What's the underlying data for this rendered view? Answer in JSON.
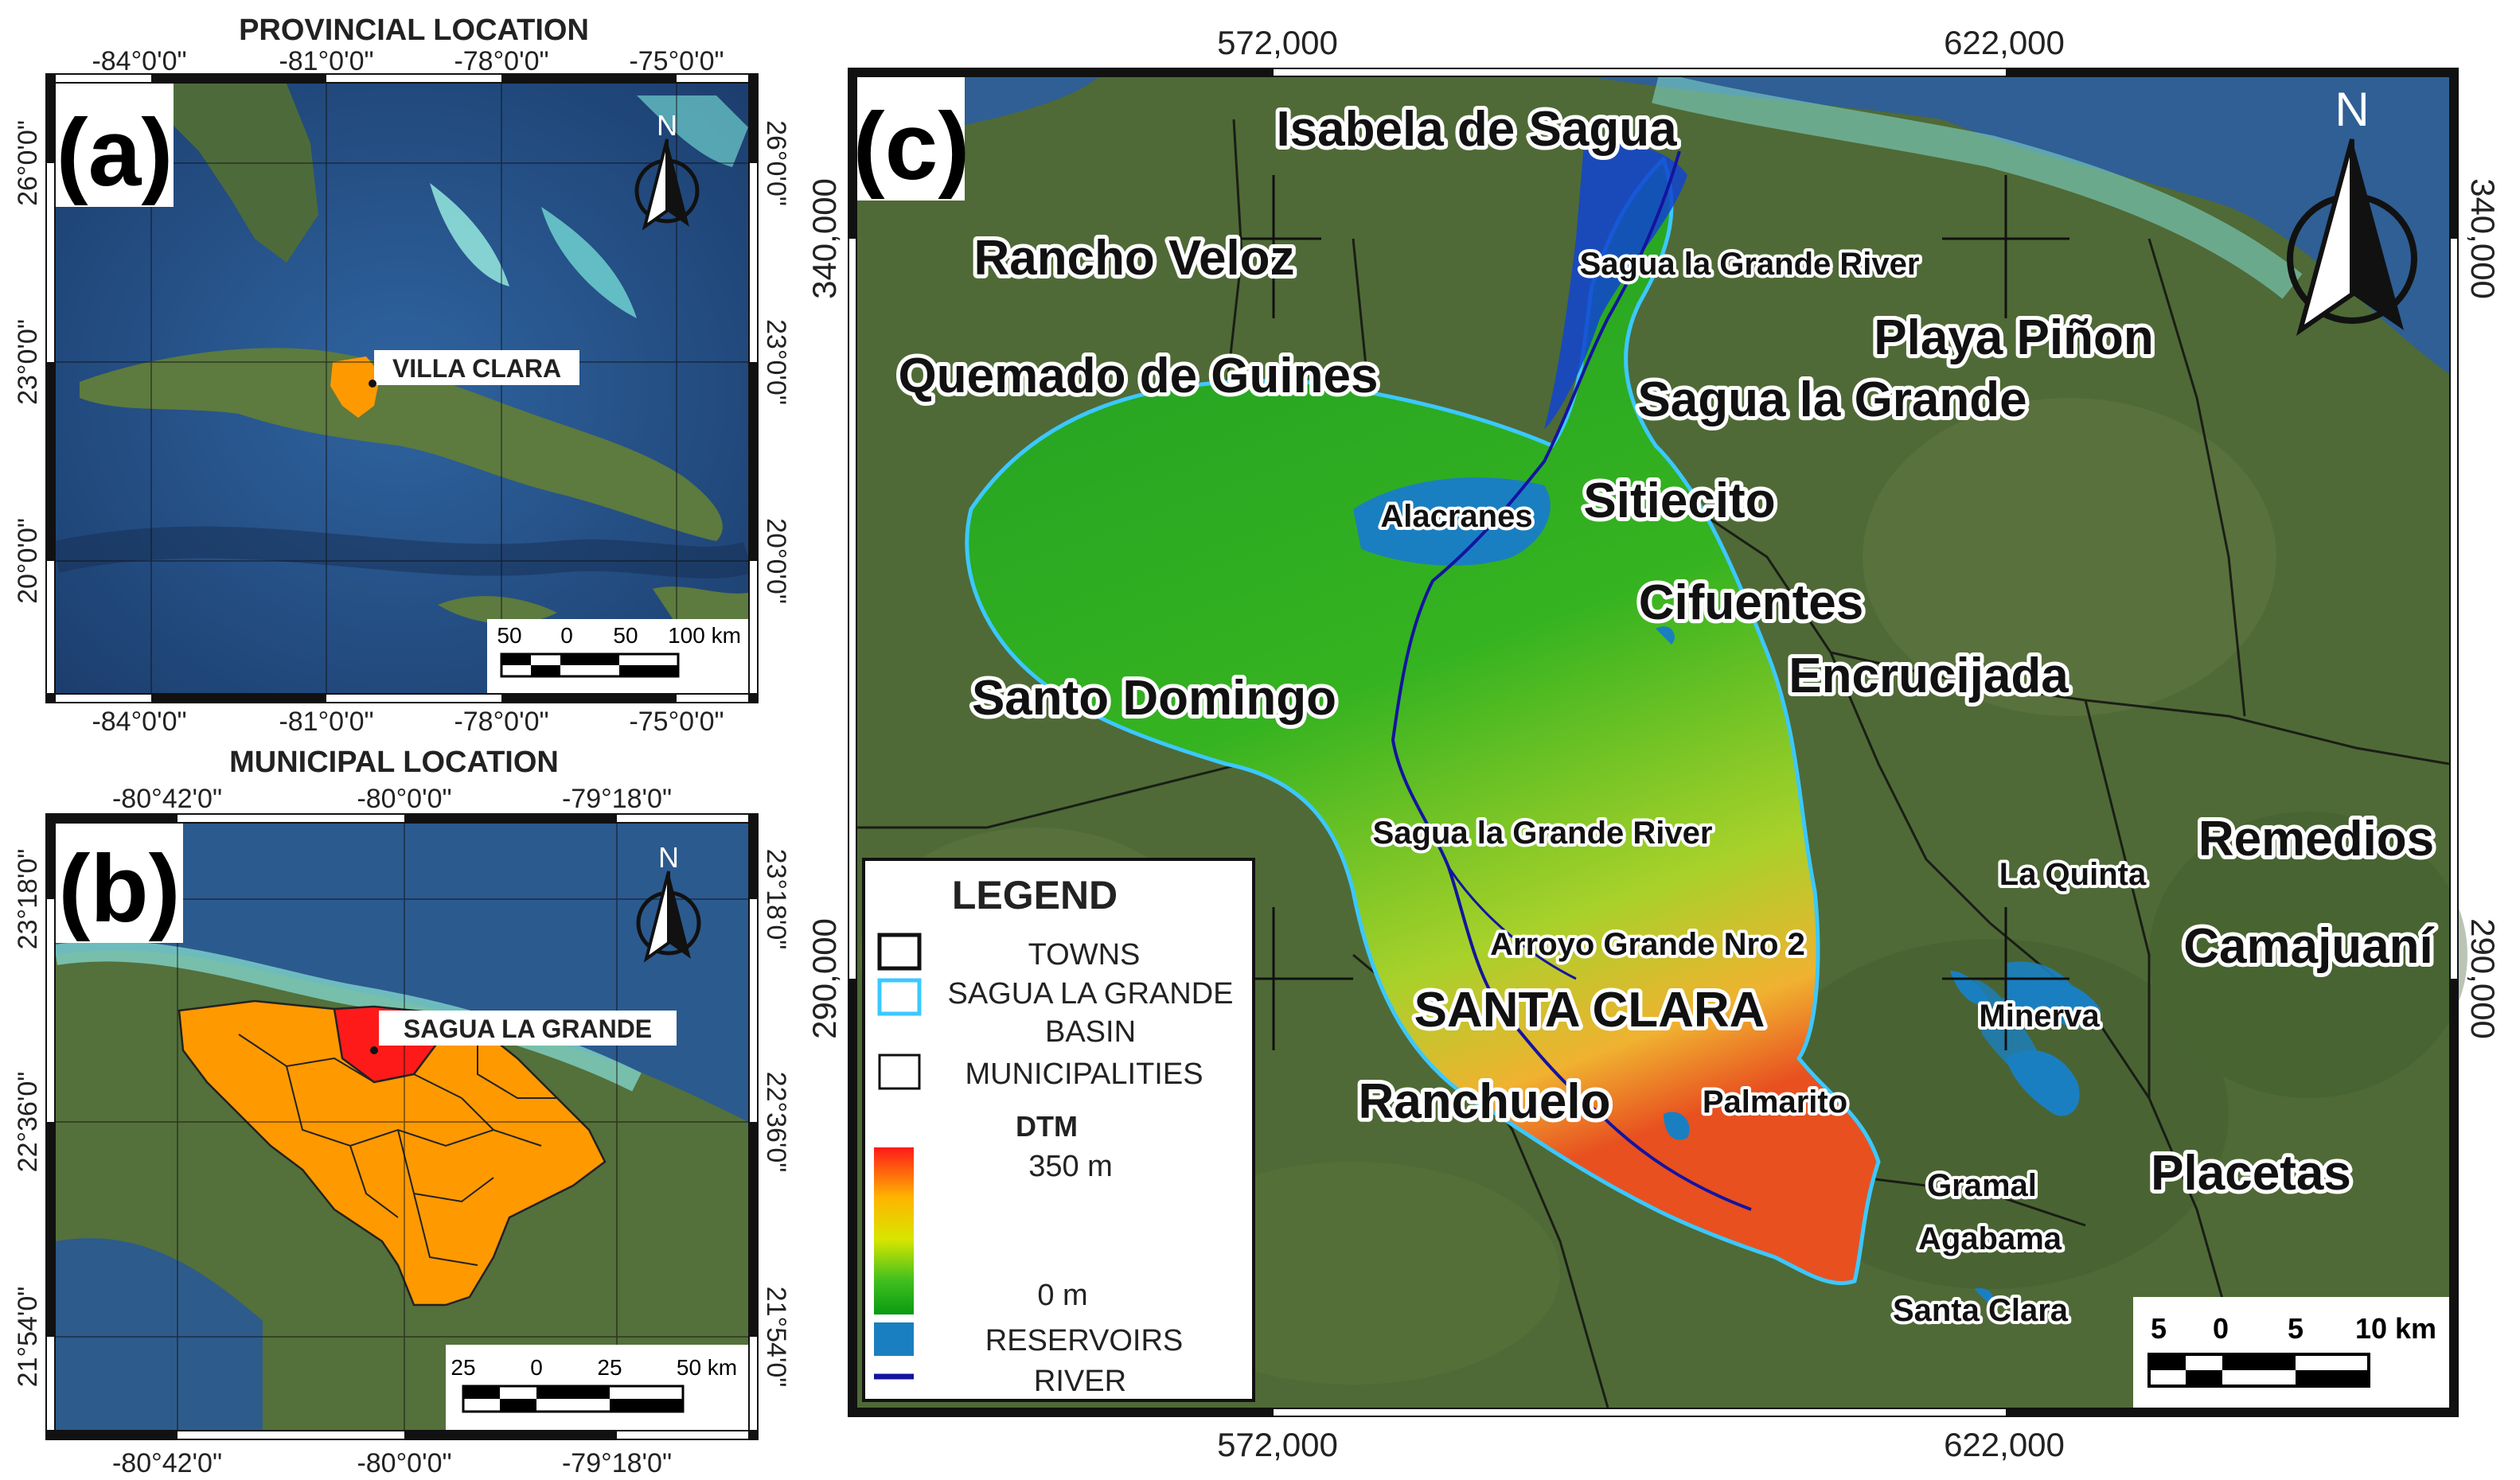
{
  "panel_a": {
    "header": "PROVINCIAL LOCATION",
    "panel_label": "(a)",
    "top_ticks": [
      "-84°0'0\"",
      "-81°0'0\"",
      "-78°0'0\"",
      "-75°0'0\""
    ],
    "bottom_ticks": [
      "-84°0'0\"",
      "-81°0'0\"",
      "-78°0'0\"",
      "-75°0'0\""
    ],
    "left_ticks": [
      "26°0'0\"",
      "23°0'0\"",
      "20°0'0\""
    ],
    "right_ticks": [
      "26°0'0\"",
      "23°0'0\"",
      "20°0'0\""
    ],
    "place_label": "VILLA CLARA",
    "north": "N",
    "scale_labels": [
      "50",
      "0",
      "50",
      "100 km"
    ]
  },
  "panel_b": {
    "header": "MUNICIPAL LOCATION",
    "panel_label": "(b)",
    "top_ticks": [
      "-80°42'0\"",
      "-80°0'0\"",
      "-79°18'0\""
    ],
    "bottom_ticks": [
      "-80°42'0\"",
      "-80°0'0\"",
      "-79°18'0\""
    ],
    "left_ticks": [
      "23°18'0\"",
      "22°36'0\"",
      "21°54'0\""
    ],
    "right_ticks": [
      "23°18'0\"",
      "22°36'0\"",
      "21°54'0\""
    ],
    "place_label": "SAGUA LA GRANDE",
    "north": "N",
    "scale_labels": [
      "25",
      "0",
      "25",
      "50 km"
    ]
  },
  "panel_c": {
    "panel_label": "(c)",
    "top_ticks": [
      "572,000",
      "622,000"
    ],
    "bottom_ticks": [
      "572,000",
      "622,000"
    ],
    "left_ticks": [
      "340,000",
      "290,000"
    ],
    "right_ticks": [
      "340,000",
      "290,000"
    ],
    "north": "N",
    "scale_labels": [
      "5",
      "0",
      "5",
      "10 km"
    ],
    "towns": [
      {
        "name": "Isabela de Sagua",
        "size": "large"
      },
      {
        "name": "Rancho Veloz",
        "size": "large"
      },
      {
        "name": "Quemado de Guines",
        "size": "large"
      },
      {
        "name": "Playa Piñon",
        "size": "large"
      },
      {
        "name": "Sagua la Grande",
        "size": "large"
      },
      {
        "name": "Sitiecito",
        "size": "large"
      },
      {
        "name": "Cifuentes",
        "size": "large"
      },
      {
        "name": "Encrucijada",
        "size": "large"
      },
      {
        "name": "Santo Domingo",
        "size": "large"
      },
      {
        "name": "Remedios",
        "size": "large"
      },
      {
        "name": "Camajuaní",
        "size": "large"
      },
      {
        "name": "SANTA CLARA",
        "size": "large"
      },
      {
        "name": "Ranchuelo",
        "size": "large"
      },
      {
        "name": "Placetas",
        "size": "large"
      }
    ],
    "features": [
      "Sagua la Grande River",
      "Alacranes",
      "Sagua la Grande River",
      "Arroyo Grande Nro 2",
      "La Quinta",
      "Minerva",
      "Palmarito",
      "Gramal",
      "Agabama",
      "Santa Clara"
    ],
    "legend": {
      "title": "LEGEND",
      "items": [
        "TOWNS",
        "SAGUA LA GRANDE BASIN",
        "MUNICIPALITIES"
      ],
      "dtm_title": "DTM",
      "dtm_max": "350 m",
      "dtm_min": "0 m",
      "reservoirs": "RESERVOIRS",
      "river": "RIVER"
    }
  },
  "colors": {
    "ocean": "#2f5f95",
    "land": "#4f6a38",
    "province": "#ff9900",
    "municipality": "#ff1a1a",
    "basin_outline": "#3cc8ff",
    "reservoir": "#1a7fc0",
    "river": "#1414a0"
  }
}
